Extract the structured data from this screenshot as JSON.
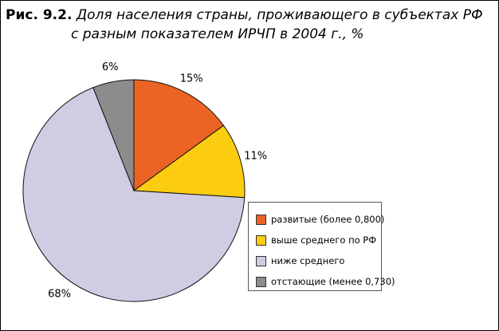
{
  "title": {
    "figure": "Рис. 9.2.",
    "line1": "Доля населения страны, проживающего в субъектах РФ",
    "line2": "с разным показателем ИРЧП в 2004 г., %"
  },
  "chart_data": {
    "type": "pie",
    "title": "Доля населения страны, проживающего в субъектах РФ с разным показателем ИРЧП в 2004 г., %",
    "categories": [
      "развитые (более 0,800)",
      "выше среднего по РФ",
      "ниже среднего",
      "отстающие (менее 0,730)"
    ],
    "values": [
      15,
      11,
      68,
      6
    ],
    "labels": [
      "15%",
      "11%",
      "68%",
      "6%"
    ],
    "colors": [
      "#ec6424",
      "#fccc10",
      "#cfcce4",
      "#8c8c8c"
    ],
    "start_angle_deg": 0,
    "direction": "clockwise",
    "legend_position": "right"
  }
}
